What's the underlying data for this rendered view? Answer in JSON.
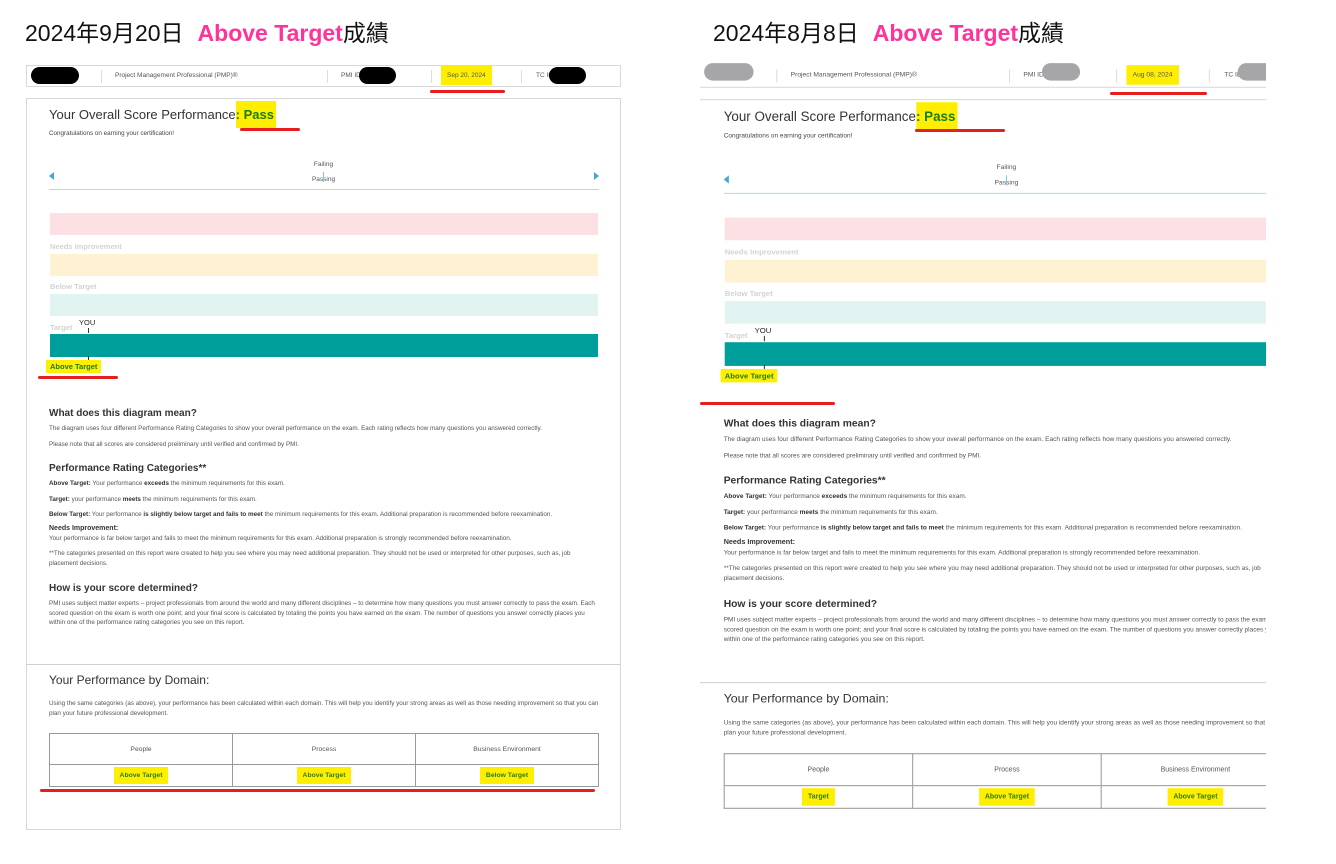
{
  "accent_color": "#ff3399",
  "page_titles": [
    {
      "date": "2024年9月20日",
      "rating": "Above Target",
      "suffix": "成績"
    },
    {
      "date": "2024年8月8日",
      "rating": "Above Target",
      "suffix": "成績"
    }
  ],
  "common": {
    "exam_name": "Project Management Professional (PMP)®",
    "pmi_id_label": "PMI ID",
    "tc_id_label": "TC ID",
    "overall_title": "Your Overall Score Performance",
    "congrats": "Congratulations on earning your certification!",
    "failing": "Failing",
    "passing": "Passing",
    "band_needs_improvement": "Needs Improvement",
    "band_below_target": "Below Target",
    "band_target": "Target",
    "you_marker": "YOU",
    "what_heading": "What does this diagram mean?",
    "what_p1": "The diagram uses four different Performance Rating Categories to show your overall performance on the exam. Each rating reflects how many questions you answered correctly.",
    "what_p2": "Please note that all scores are considered preliminary until verified and confirmed by PMI.",
    "categories_heading": "Performance Rating Categories**",
    "def_above": {
      "label": "Above Target:",
      "a": " Your performance ",
      "b": "exceeds",
      "c": " the minimum requirements for this exam."
    },
    "def_target": {
      "label": "Target:",
      "a": " your performance ",
      "b": "meets",
      "c": " the minimum requirements for this exam."
    },
    "def_below": {
      "label": "Below Target:",
      "a": " Your performance ",
      "b": "is slightly below target and fails to meet",
      "c": " the minimum requirements for this exam. Additional preparation is recommended before reexamination."
    },
    "def_needs": {
      "label": "Needs Improvement:",
      "text": "Your performance is far below target and fails to meet the minimum requirements for this exam. Additional preparation is strongly recommended before reexamination."
    },
    "footnote": "**The categories presented on this report were created to help you see where you may need additional preparation. They should not be used or interpreted for other purposes, such as, job placement decisions.",
    "how_heading": "How is your score determined?",
    "how_p": "PMI uses subject matter experts – project professionals from around the world and many different disciplines – to determine how many questions you must answer correctly to pass the exam. Each scored question on the exam is worth one point; and your final score is calculated by totaling the points you have earned on the exam. The number of questions you answer correctly places you within one of the performance rating categories you see on this report.",
    "domain_heading": "Your Performance by Domain:",
    "domain_p": "Using the same categories (as above), your performance has been calculated within each domain. This will help you identify your strong areas as well as those needing improvement so that you can plan your future professional development."
  },
  "reports": [
    {
      "exam_date": "Sep 20, 2024",
      "result": ": Pass",
      "overall_rating": "Above Target",
      "domains": [
        {
          "name": "People",
          "rating": "Above Target"
        },
        {
          "name": "Process",
          "rating": "Above Target"
        },
        {
          "name": "Business Environment",
          "rating": "Below Target"
        }
      ]
    },
    {
      "exam_date": "Aug 08, 2024",
      "result": ": Pass",
      "overall_rating": "Above Target",
      "domains": [
        {
          "name": "People",
          "rating": "Target"
        },
        {
          "name": "Process",
          "rating": "Above Target"
        },
        {
          "name": "Business Environment",
          "rating": "Above Target"
        }
      ]
    }
  ],
  "colors": {
    "needs_improvement": "#fde0e4",
    "below_target": "#fff2d3",
    "target": "#e2f4f2",
    "above_target": "#009e9a",
    "pass": "#1a7d1a",
    "highlight": "#ffee00",
    "annotation": "#e81d1d"
  }
}
